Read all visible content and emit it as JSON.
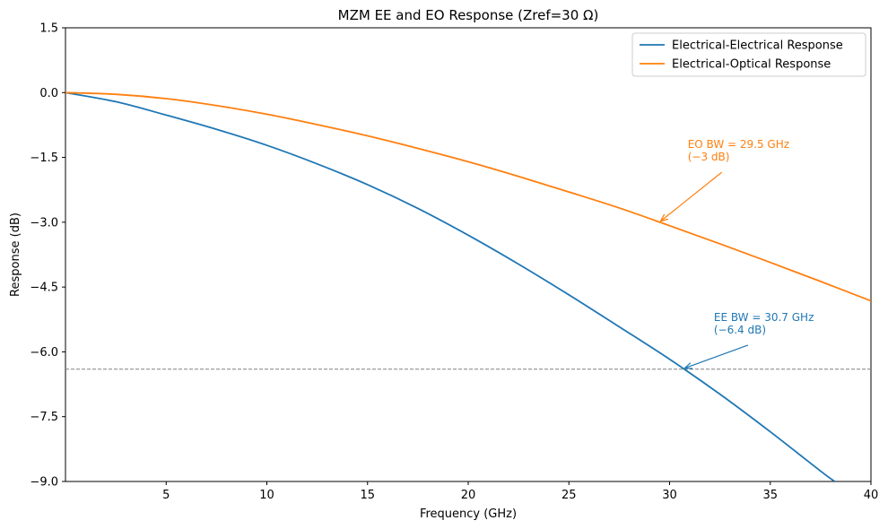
{
  "chart_data": {
    "type": "line",
    "title": "MZM EE and EO Response (Zref=30 Ω)",
    "xlabel": "Frequency (GHz)",
    "ylabel": "Response (dB)",
    "xlim": [
      0,
      40
    ],
    "ylim": [
      -9.0,
      1.5
    ],
    "xticks": [
      5,
      10,
      15,
      20,
      25,
      30,
      35,
      40
    ],
    "xtick_labels": [
      "5",
      "10",
      "15",
      "20",
      "25",
      "30",
      "35",
      "40"
    ],
    "yticks": [
      1.5,
      0.0,
      -1.5,
      -3.0,
      -4.5,
      -6.0,
      -7.5,
      -9.0
    ],
    "ytick_labels": [
      "1.5",
      "0.0",
      "−1.5",
      "−3.0",
      "−4.5",
      "−6.0",
      "−7.5",
      "−9.0"
    ],
    "grid": false,
    "legend_position": "top-right",
    "series": [
      {
        "name": "Electrical-Electrical Response",
        "color": "#1f77b4",
        "x": [
          0,
          2.5,
          5,
          7.5,
          10,
          12.5,
          15,
          17.5,
          20,
          22.5,
          25,
          27.5,
          30,
          32.5,
          35,
          37.5,
          38.2
        ],
        "values": [
          0.0,
          -0.21,
          -0.52,
          -0.85,
          -1.22,
          -1.65,
          -2.13,
          -2.68,
          -3.3,
          -3.97,
          -4.68,
          -5.42,
          -6.17,
          -6.98,
          -7.85,
          -8.76,
          -9.0
        ]
      },
      {
        "name": "Electrical-Optical Response",
        "color": "#ff7f0e",
        "x": [
          0,
          2.5,
          5,
          7.5,
          10,
          12.5,
          15,
          17.5,
          20,
          22.5,
          25,
          27.5,
          30,
          32.5,
          35,
          37.5,
          40
        ],
        "values": [
          0.0,
          -0.04,
          -0.14,
          -0.3,
          -0.5,
          -0.74,
          -1.0,
          -1.29,
          -1.6,
          -1.94,
          -2.3,
          -2.67,
          -3.08,
          -3.5,
          -3.93,
          -4.37,
          -4.82
        ]
      }
    ],
    "reference_line": {
      "y": -6.4,
      "color": "#808080",
      "style": "dashed"
    },
    "annotations": [
      {
        "lines": [
          "EO BW = 29.5 GHz",
          "(−3 dB)"
        ],
        "color": "#ff7f0e",
        "text_at": [
          30.9,
          -1.2
        ],
        "arrow_to": [
          29.5,
          -3.0
        ]
      },
      {
        "lines": [
          "EE BW = 30.7 GHz",
          "(−6.4 dB)"
        ],
        "color": "#1f77b4",
        "text_at": [
          32.2,
          -5.2
        ],
        "arrow_to": [
          30.7,
          -6.4
        ]
      }
    ]
  }
}
